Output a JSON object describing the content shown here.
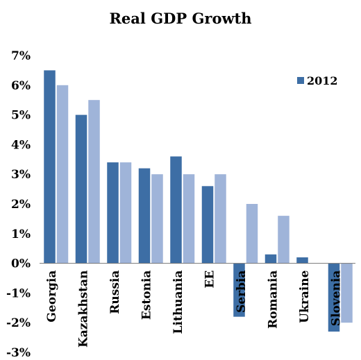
{
  "chart_data": {
    "type": "bar",
    "title": "Real GDP Growth",
    "xlabel": "",
    "ylabel": "",
    "ylim": [
      -3,
      7
    ],
    "y_ticks": [
      "-3%",
      "-2%",
      "-1%",
      "0%",
      "1%",
      "2%",
      "3%",
      "4%",
      "5%",
      "6%",
      "7%"
    ],
    "grid": false,
    "legend_position": "top-right",
    "categories": [
      "Georgia",
      "Kazakhstan",
      "Russia",
      "Estonia",
      "Lithuania",
      "EE",
      "Serbia",
      "Romania",
      "Ukraine",
      "Slovenia"
    ],
    "series": [
      {
        "name": "2012",
        "color": "#3d6ea5",
        "values": [
          6.5,
          5.0,
          3.4,
          3.2,
          3.6,
          2.6,
          -1.8,
          0.3,
          0.2,
          -2.3
        ]
      },
      {
        "name": "",
        "color": "#9fb4d9",
        "values": [
          6.0,
          5.5,
          3.4,
          3.0,
          3.0,
          3.0,
          2.0,
          1.6,
          0.0,
          -2.0
        ]
      }
    ]
  }
}
